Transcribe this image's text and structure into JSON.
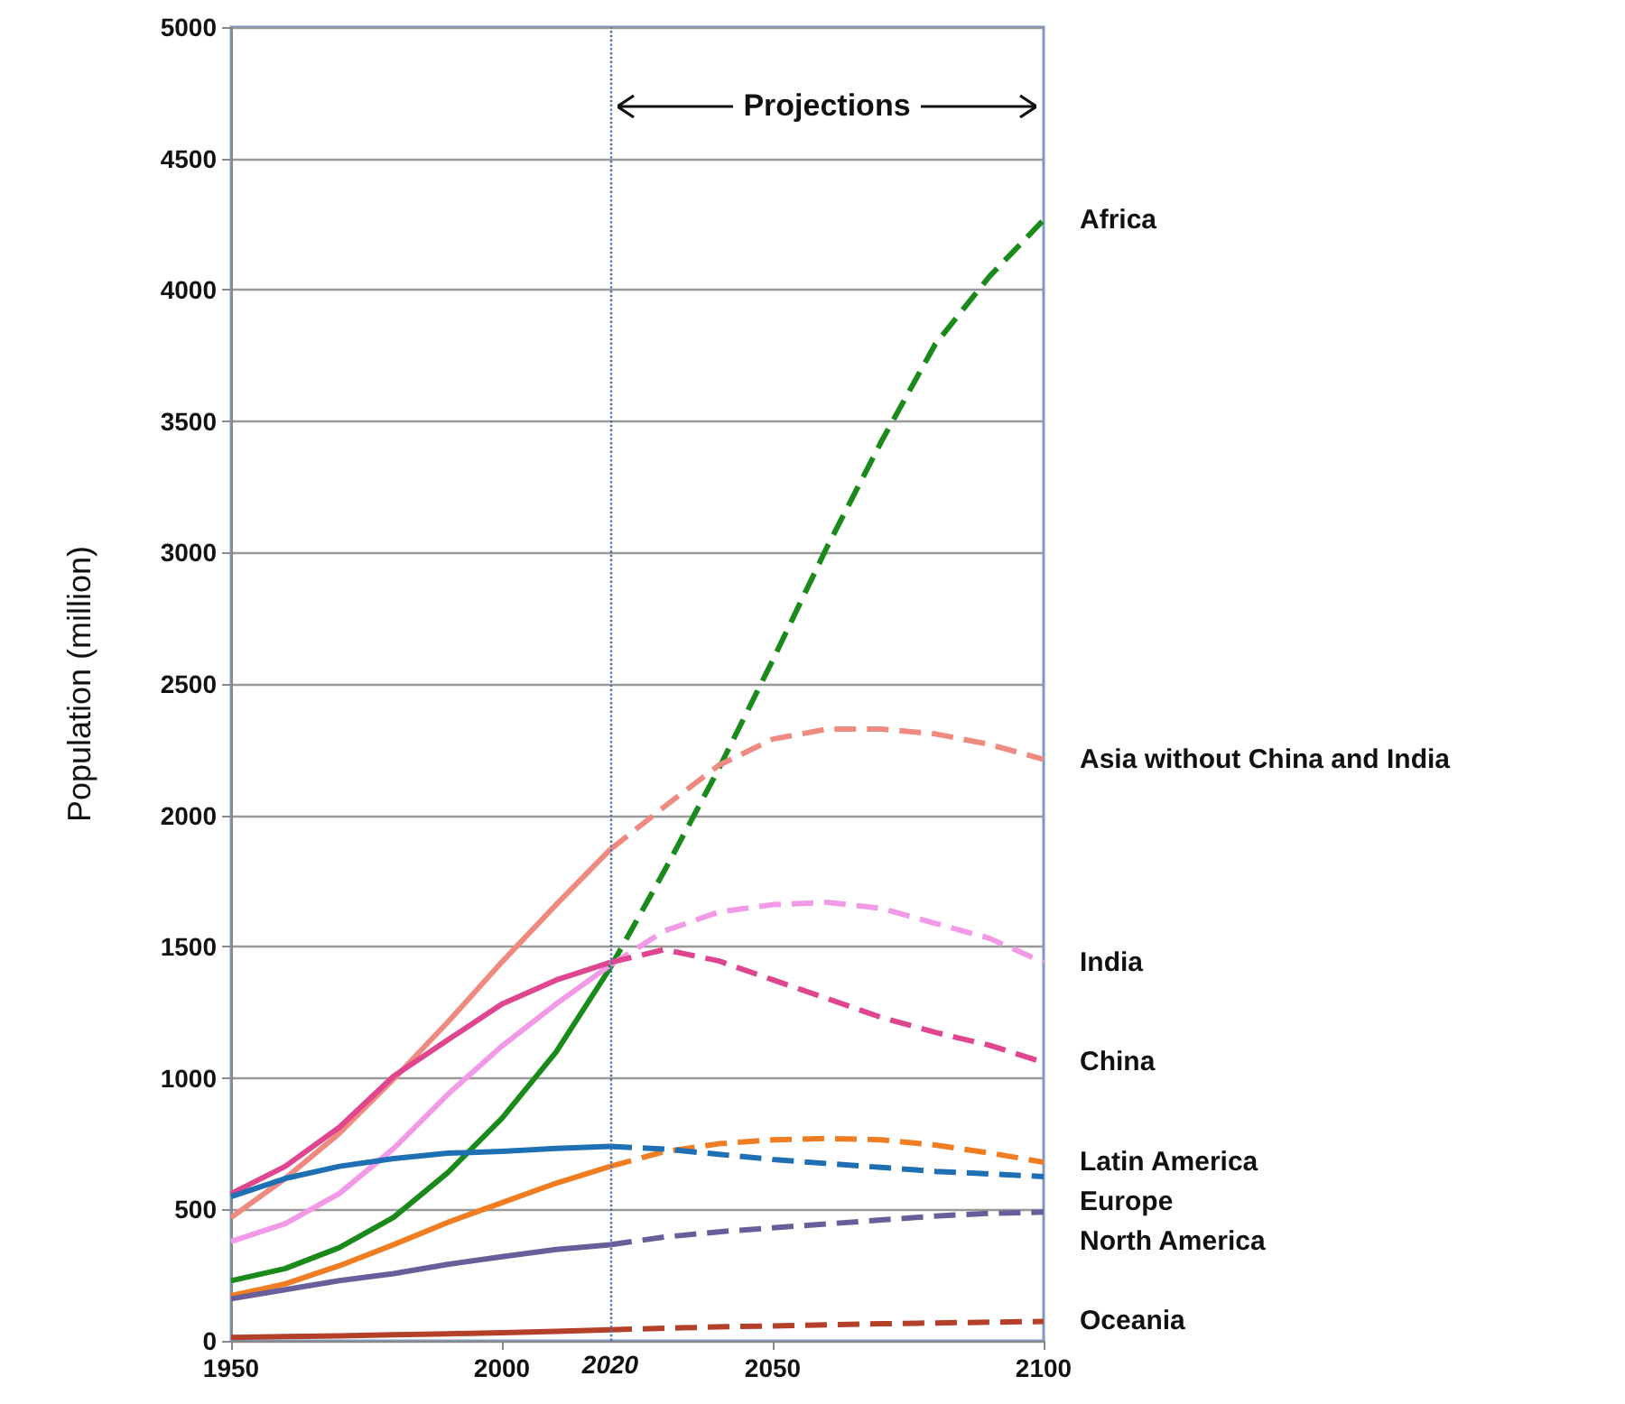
{
  "chart_data": {
    "type": "line",
    "ylabel": "Population (million)",
    "xlim": [
      1950,
      2100
    ],
    "xticks": [
      1950,
      2000,
      2050,
      2100
    ],
    "ylim": [
      0,
      5000
    ],
    "yticks": [
      0,
      500,
      1000,
      1500,
      2000,
      2500,
      3000,
      3500,
      4000,
      4500,
      5000
    ],
    "grid": "y",
    "marker": "none",
    "annotations": [
      {
        "text": "Projections",
        "x": 2020,
        "y": 4700
      }
    ],
    "ref_lines": [
      {
        "axis": "x",
        "value": 2020,
        "label": "2020",
        "color": "#4a70b0",
        "line_style": "dotted"
      }
    ],
    "series": [
      {
        "color": "#1a8a1a",
        "line_style": "solid",
        "x": [
          1950,
          1960,
          1970,
          1980,
          1990,
          2000,
          2010,
          2020
        ],
        "values": [
          229,
          275,
          355,
          470,
          640,
          847,
          1099,
          1420
        ]
      },
      {
        "color": "#ef8a80",
        "line_style": "solid",
        "x": [
          1950,
          1960,
          1970,
          1980,
          1990,
          2000,
          2010,
          2020
        ],
        "values": [
          469,
          618,
          790,
          996,
          1213,
          1442,
          1660,
          1870
        ]
      },
      {
        "color": "#f29ae8",
        "line_style": "solid",
        "x": [
          1950,
          1960,
          1970,
          1980,
          1990,
          2000,
          2010,
          2020
        ],
        "values": [
          378,
          446,
          561,
          732,
          938,
          1122,
          1282,
          1430
        ]
      },
      {
        "color": "#e0458f",
        "line_style": "solid",
        "x": [
          1950,
          1960,
          1970,
          1980,
          1990,
          2000,
          2010,
          2020
        ],
        "values": [
          560,
          664,
          813,
          1007,
          1145,
          1282,
          1373,
          1440
        ]
      },
      {
        "color": "#f07d22",
        "line_style": "solid",
        "x": [
          1950,
          1960,
          1970,
          1980,
          1990,
          2000,
          2010,
          2020
        ],
        "values": [
          172,
          217,
          286,
          366,
          451,
          526,
          600,
          664
        ]
      },
      {
        "color": "#1f6fb4",
        "line_style": "solid",
        "x": [
          1950,
          1960,
          1970,
          1980,
          1990,
          2000,
          2010,
          2020
        ],
        "values": [
          549,
          618,
          664,
          694,
          714,
          721,
          732,
          740
        ]
      },
      {
        "color": "#6a5e9a",
        "line_style": "solid",
        "x": [
          1950,
          1960,
          1970,
          1980,
          1990,
          2000,
          2010,
          2020
        ],
        "values": [
          160,
          195,
          229,
          256,
          291,
          320,
          348,
          366
        ]
      },
      {
        "color": "#b5402a",
        "line_style": "solid",
        "x": [
          1950,
          1960,
          1970,
          1980,
          1990,
          2000,
          2010,
          2020
        ],
        "values": [
          13,
          16,
          19,
          23,
          27,
          31,
          36,
          42
        ]
      },
      {
        "name": "Africa",
        "color": "#1a8a1a",
        "line_style": "dashed",
        "x": [
          2020,
          2030,
          2040,
          2050,
          2060,
          2070,
          2080,
          2090,
          2100
        ],
        "values": [
          1420,
          1789,
          2176,
          2591,
          3020,
          3421,
          3793,
          4051,
          4266
        ]
      },
      {
        "name": "Asia without China and India",
        "color": "#ef8a80",
        "line_style": "dashed",
        "x": [
          2020,
          2030,
          2040,
          2050,
          2060,
          2070,
          2080,
          2090,
          2100
        ],
        "values": [
          1870,
          2033,
          2190,
          2290,
          2328,
          2328,
          2310,
          2270,
          2213
        ]
      },
      {
        "name": "India",
        "color": "#f29ae8",
        "line_style": "dashed",
        "x": [
          2020,
          2030,
          2040,
          2050,
          2060,
          2070,
          2080,
          2090,
          2100
        ],
        "values": [
          1430,
          1560,
          1632,
          1660,
          1669,
          1646,
          1589,
          1532,
          1440
        ]
      },
      {
        "name": "China",
        "color": "#e0458f",
        "line_style": "dashed",
        "x": [
          2020,
          2030,
          2040,
          2050,
          2060,
          2070,
          2080,
          2090,
          2100
        ],
        "values": [
          1440,
          1489,
          1446,
          1374,
          1303,
          1231,
          1174,
          1125,
          1060
        ]
      },
      {
        "name": "Latin America",
        "color": "#f07d22",
        "line_style": "dashed",
        "x": [
          2020,
          2030,
          2040,
          2050,
          2060,
          2070,
          2080,
          2090,
          2100
        ],
        "values": [
          664,
          720,
          750,
          765,
          770,
          765,
          745,
          715,
          680
        ]
      },
      {
        "name": "Europe",
        "color": "#1f6fb4",
        "line_style": "dashed",
        "x": [
          2020,
          2030,
          2040,
          2050,
          2060,
          2070,
          2080,
          2090,
          2100
        ],
        "values": [
          740,
          730,
          710,
          690,
          675,
          660,
          645,
          635,
          625
        ]
      },
      {
        "name": "North America",
        "color": "#6a5e9a",
        "line_style": "dashed",
        "x": [
          2020,
          2030,
          2040,
          2050,
          2060,
          2070,
          2080,
          2090,
          2100
        ],
        "values": [
          366,
          395,
          415,
          430,
          445,
          460,
          475,
          485,
          490
        ]
      },
      {
        "name": "Oceania",
        "color": "#b5402a",
        "line_style": "dashed",
        "x": [
          2020,
          2030,
          2040,
          2050,
          2060,
          2070,
          2080,
          2090,
          2100
        ],
        "values": [
          42,
          48,
          53,
          57,
          61,
          65,
          68,
          71,
          74
        ]
      }
    ]
  }
}
